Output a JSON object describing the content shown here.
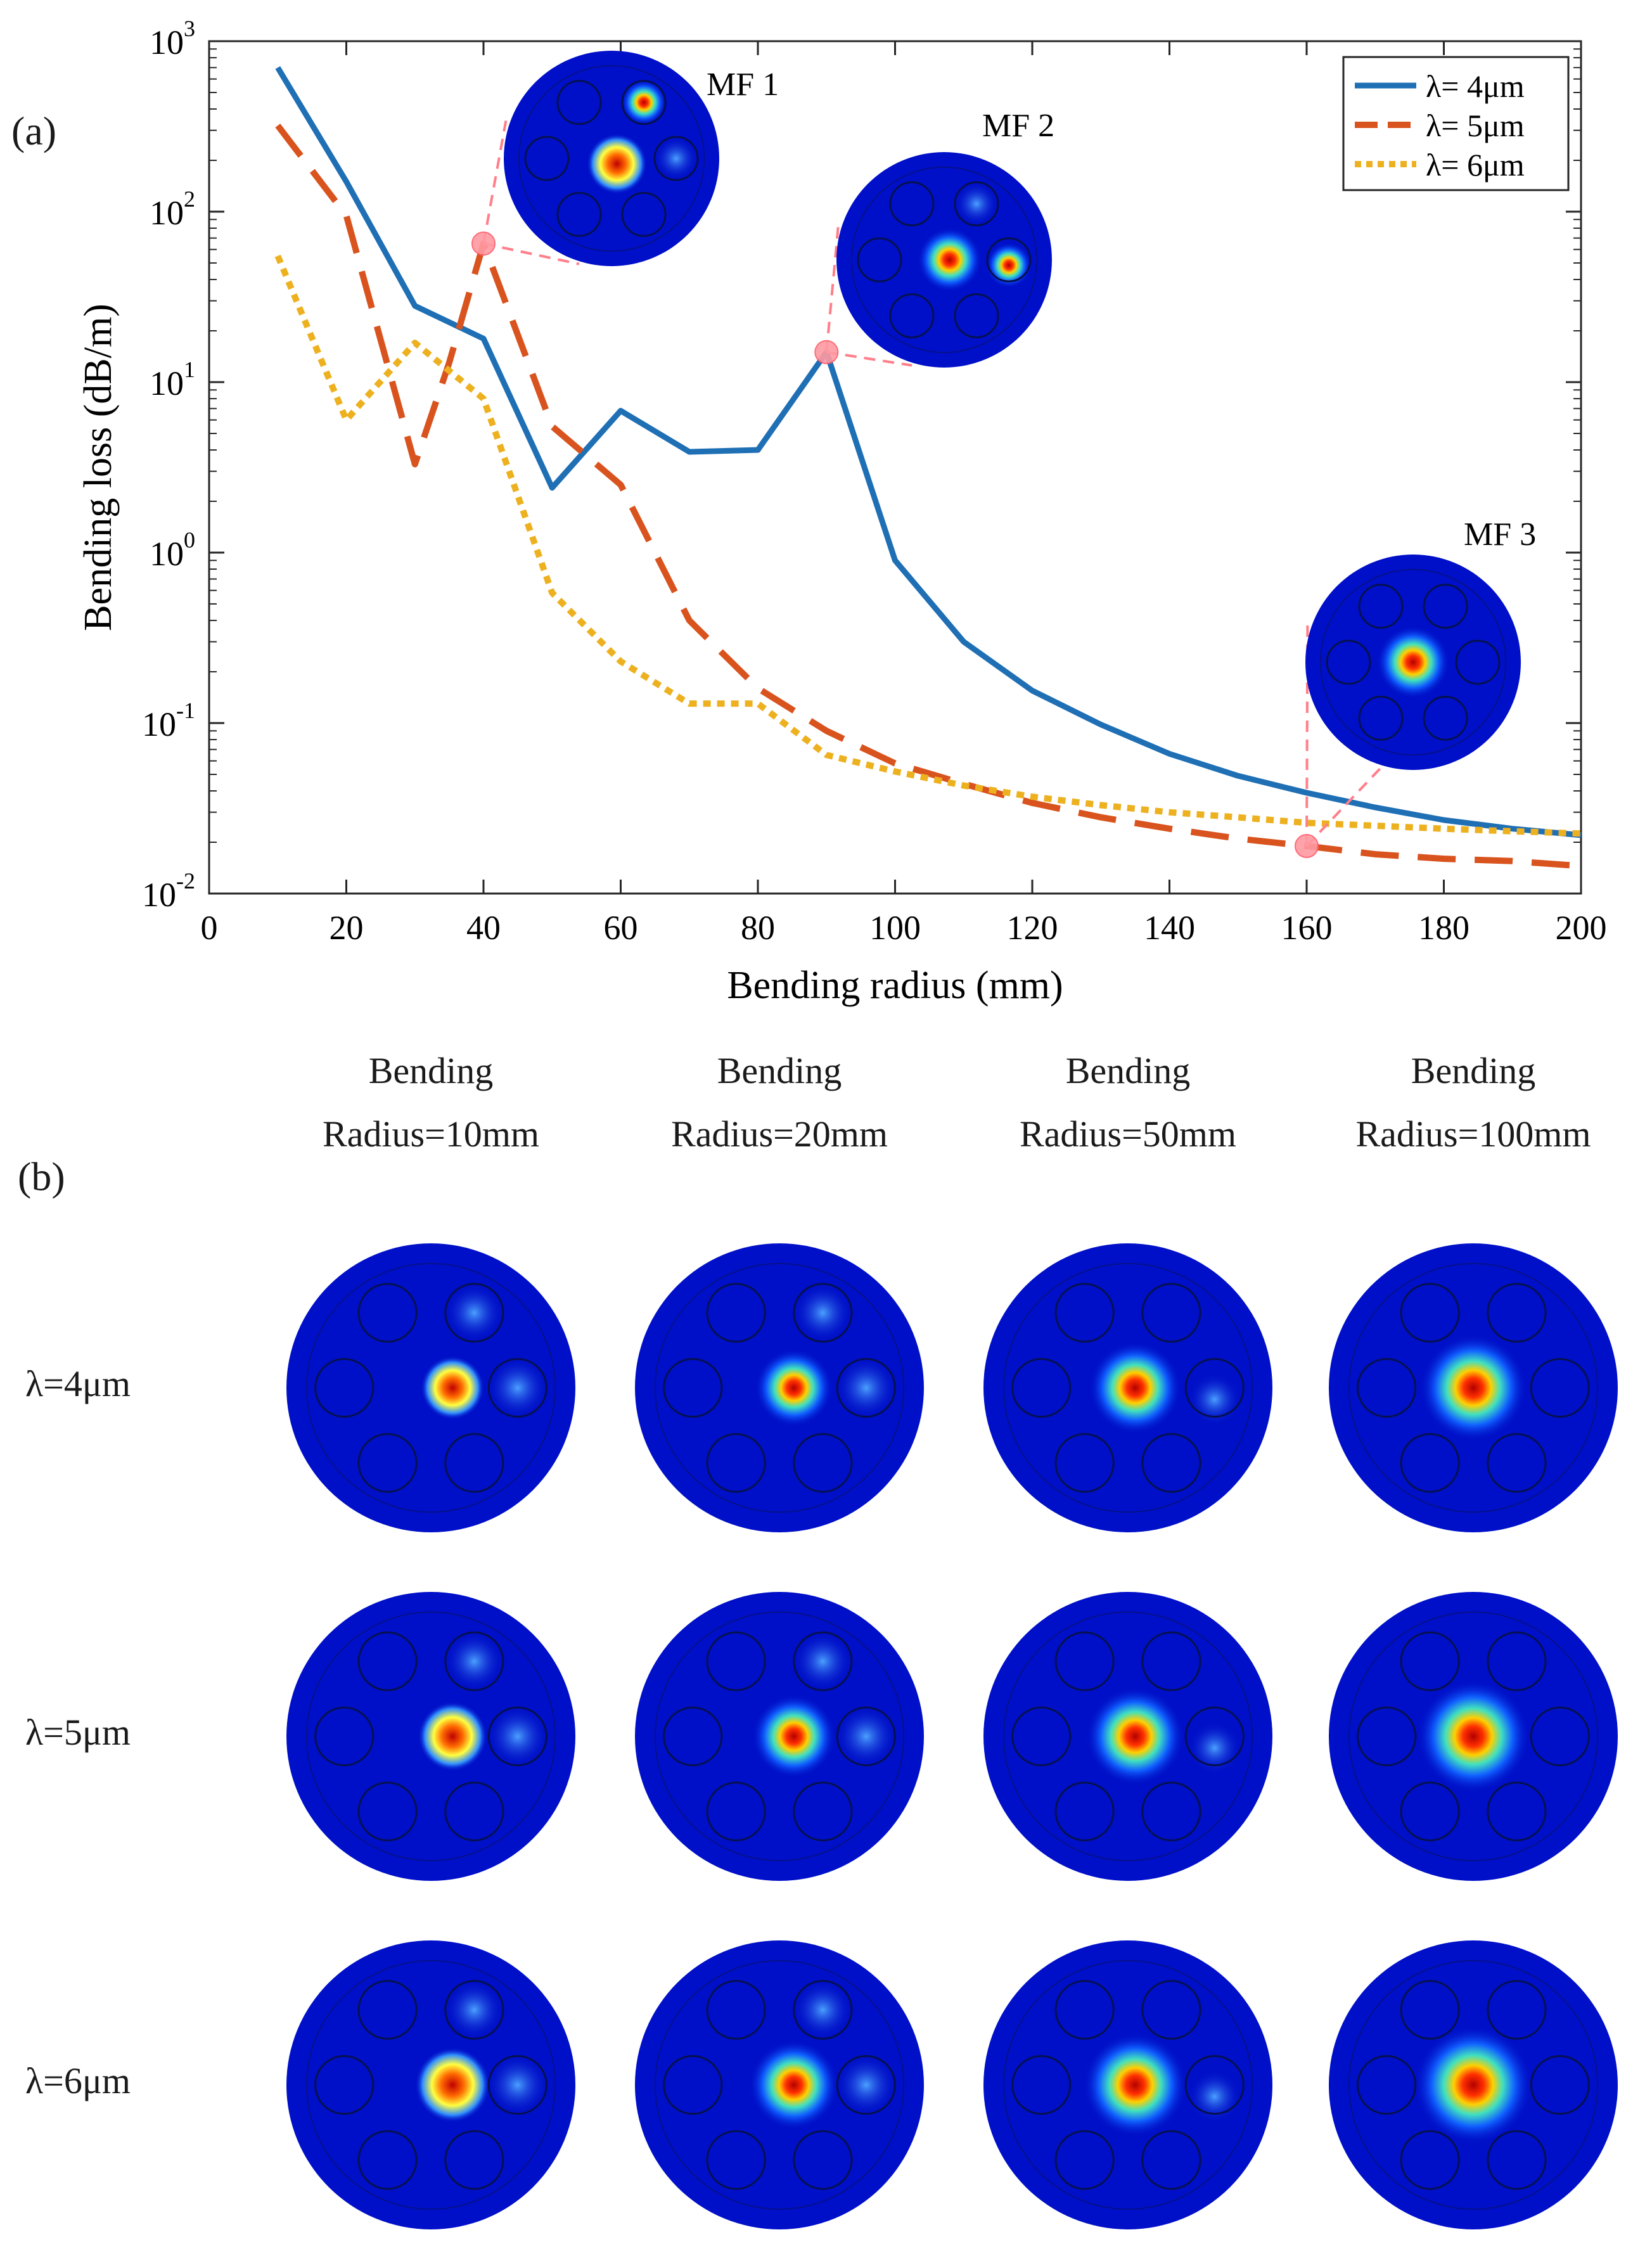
{
  "panel_labels": {
    "a": "(a)",
    "b": "(b)"
  },
  "chart_data": {
    "type": "line",
    "title": "",
    "xlabel": "Bending radius (mm)",
    "ylabel": "Bending loss (dB/m)",
    "xlim": [
      0,
      200
    ],
    "ylim": [
      0.01,
      1000
    ],
    "yscale": "log",
    "x_ticks": [
      0,
      20,
      40,
      60,
      80,
      100,
      120,
      140,
      160,
      180,
      200
    ],
    "x_tick_labels": [
      "0",
      "20",
      "40",
      "60",
      "80",
      "100",
      "120",
      "140",
      "160",
      "180",
      "200"
    ],
    "y_ticks": [
      0.01,
      0.1,
      1,
      10,
      100,
      1000
    ],
    "y_tick_base": [
      "10",
      "10",
      "10",
      "10",
      "10",
      "10"
    ],
    "y_tick_exp": [
      "-2",
      "-1",
      "0",
      "1",
      "2",
      "3"
    ],
    "legend_position": "top-right",
    "series": [
      {
        "name": "λ= 4μm",
        "color": "#1f6fb5",
        "dash": "solid",
        "x": [
          10,
          20,
          30,
          40,
          50,
          60,
          70,
          80,
          90,
          100,
          110,
          120,
          130,
          140,
          150,
          160,
          170,
          180,
          190,
          200
        ],
        "values": [
          700,
          150,
          28,
          18,
          2.4,
          6.8,
          3.9,
          4.0,
          15,
          0.9,
          0.3,
          0.155,
          0.098,
          0.066,
          0.049,
          0.039,
          0.032,
          0.027,
          0.024,
          0.022
        ]
      },
      {
        "name": "λ= 5μm",
        "color": "#d9531e",
        "dash": "dashed",
        "x": [
          10,
          20,
          30,
          35,
          40,
          50,
          60,
          70,
          80,
          90,
          100,
          110,
          120,
          130,
          140,
          150,
          160,
          170,
          180,
          190,
          200
        ],
        "values": [
          320,
          95,
          3.3,
          13,
          65,
          5.5,
          2.5,
          0.4,
          0.16,
          0.09,
          0.058,
          0.044,
          0.034,
          0.028,
          0.024,
          0.021,
          0.019,
          0.017,
          0.016,
          0.0155,
          0.0145
        ]
      },
      {
        "name": "λ= 6μm",
        "color": "#edb120",
        "dash": "dotted",
        "x": [
          10,
          20,
          30,
          40,
          50,
          60,
          70,
          80,
          90,
          100,
          110,
          120,
          130,
          140,
          150,
          160,
          170,
          180,
          190,
          200
        ],
        "values": [
          55,
          6,
          17,
          8,
          0.58,
          0.23,
          0.13,
          0.13,
          0.065,
          0.052,
          0.043,
          0.037,
          0.033,
          0.03,
          0.028,
          0.026,
          0.025,
          0.024,
          0.0232,
          0.0225
        ]
      }
    ],
    "annotations": [
      {
        "label": "MF 1",
        "x": 40,
        "y": 65
      },
      {
        "label": "MF 2",
        "x": 90,
        "y": 15
      },
      {
        "label": "MF 3",
        "x": 160,
        "y": 0.019
      }
    ]
  },
  "mode_grid": {
    "columns": [
      {
        "line1": "Bending",
        "line2": "Radius=10mm"
      },
      {
        "line1": "Bending",
        "line2": "Radius=20mm"
      },
      {
        "line1": "Bending",
        "line2": "Radius=50mm"
      },
      {
        "line1": "Bending",
        "line2": "Radius=100mm"
      }
    ],
    "rows": [
      "λ=4μm",
      "λ=5μm",
      "λ=6μm"
    ]
  }
}
